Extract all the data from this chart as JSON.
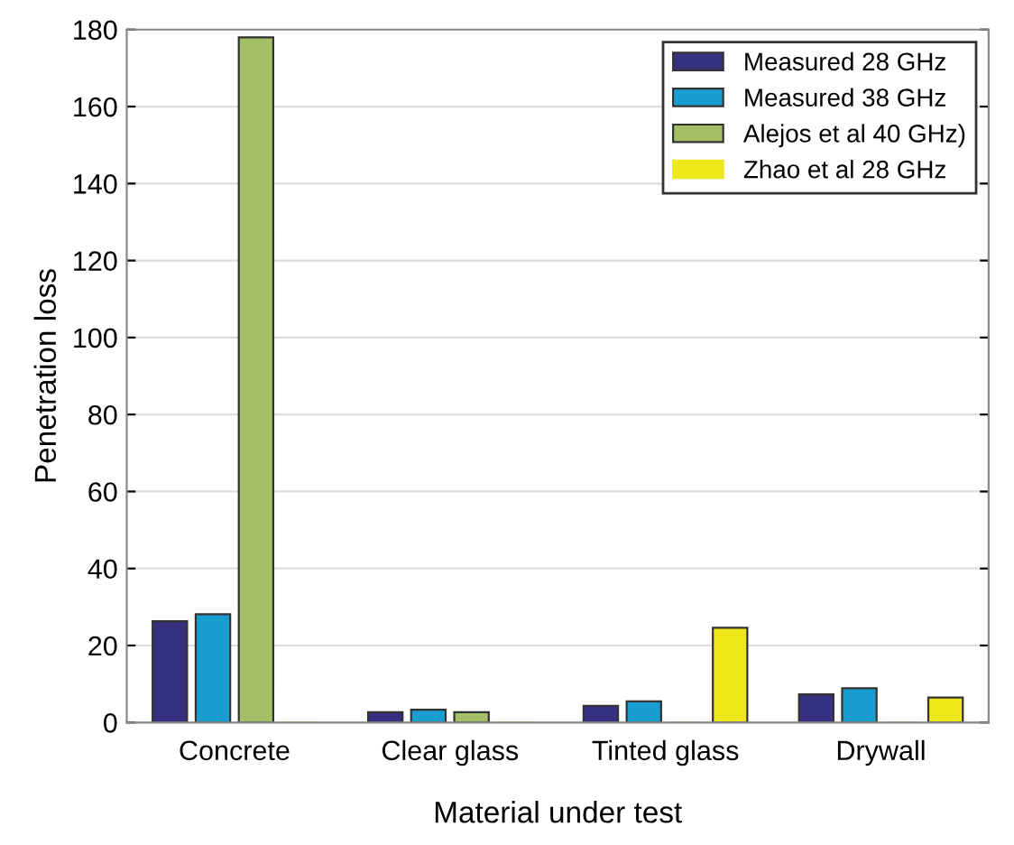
{
  "chart_data": {
    "type": "bar",
    "xlabel": "Material under test",
    "ylabel": "Penetration loss",
    "categories": [
      "Concrete",
      "Clear glass",
      "Tinted glass",
      "Drywall"
    ],
    "series": [
      {
        "name": "Measured 28 GHz",
        "color": "#35307f",
        "values": [
          26.3,
          2.7,
          4.3,
          7.3
        ]
      },
      {
        "name": "Measured 38 GHz",
        "color": "#1a9ed0",
        "values": [
          28.1,
          3.3,
          5.5,
          8.9
        ]
      },
      {
        "name": "Alejos et al 40 GHz)",
        "color": "#a5bf66",
        "values": [
          178,
          2.7,
          0,
          0
        ]
      },
      {
        "name": "Zhao et al 28 GHz",
        "color": "#eee81b",
        "values": [
          0,
          0,
          24.6,
          6.5
        ]
      }
    ],
    "ylim": [
      0,
      180
    ],
    "yticks": [
      0,
      20,
      40,
      60,
      80,
      100,
      120,
      140,
      160,
      180
    ],
    "grid": "y",
    "legend": "top right"
  }
}
